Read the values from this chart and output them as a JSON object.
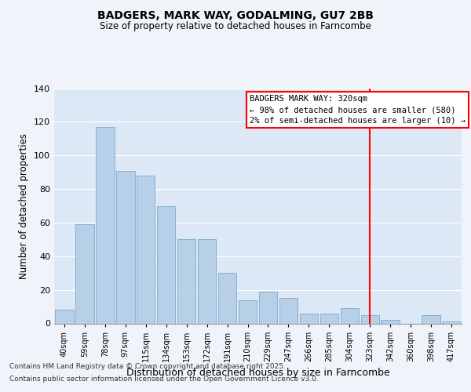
{
  "title": "BADGERS, MARK WAY, GODALMING, GU7 2BB",
  "subtitle": "Size of property relative to detached houses in Farncombe",
  "xlabel": "Distribution of detached houses by size in Farncombe",
  "ylabel": "Number of detached properties",
  "categories": [
    "40sqm",
    "59sqm",
    "78sqm",
    "97sqm",
    "115sqm",
    "134sqm",
    "153sqm",
    "172sqm",
    "191sqm",
    "210sqm",
    "229sqm",
    "247sqm",
    "266sqm",
    "285sqm",
    "304sqm",
    "323sqm",
    "342sqm",
    "360sqm",
    "398sqm",
    "417sqm"
  ],
  "values": [
    8,
    59,
    117,
    91,
    88,
    70,
    50,
    50,
    30,
    14,
    19,
    15,
    6,
    6,
    9,
    5,
    2,
    0,
    5,
    1
  ],
  "bar_color": "#b8cfe8",
  "bar_edge_color": "#7aaad0",
  "vline_index": 15,
  "vline_color": "red",
  "annotation_text": "BADGERS MARK WAY: 320sqm\n← 98% of detached houses are smaller (580)\n2% of semi-detached houses are larger (10) →",
  "ylim": [
    0,
    140
  ],
  "yticks": [
    0,
    20,
    40,
    60,
    80,
    100,
    120,
    140
  ],
  "footer1": "Contains HM Land Registry data © Crown copyright and database right 2025.",
  "footer2": "Contains public sector information licensed under the Open Government Licence v3.0.",
  "bg_color": "#f0f4fa",
  "plot_bg_color": "#dce8f5"
}
